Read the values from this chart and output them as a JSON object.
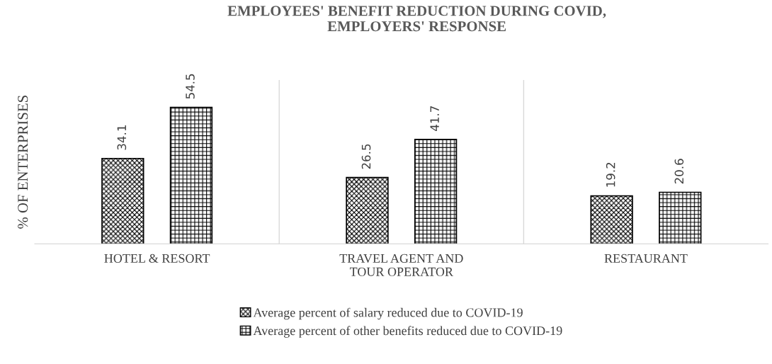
{
  "chart_data": {
    "type": "bar",
    "title": "EMPLOYEES' BENEFIT REDUCTION DURING COVID,\nEMPLOYERS' RESPONSE",
    "ylabel": "% OF ENTERPRISES",
    "categories": [
      "HOTEL & RESORT",
      "TRAVEL AGENT AND\nTOUR OPERATOR",
      "RESTAURANT"
    ],
    "series": [
      {
        "name": "Average percent of salary reduced due to COVID-19",
        "color": "#000000",
        "values": [
          34.1,
          26.5,
          19.2
        ]
      },
      {
        "name": "Average percent of other benefits reduced due to COVID-19",
        "color": "#000000",
        "values": [
          54.5,
          41.7,
          20.6
        ]
      }
    ],
    "data_labels": true,
    "grid": "x",
    "legend": "bottom"
  }
}
